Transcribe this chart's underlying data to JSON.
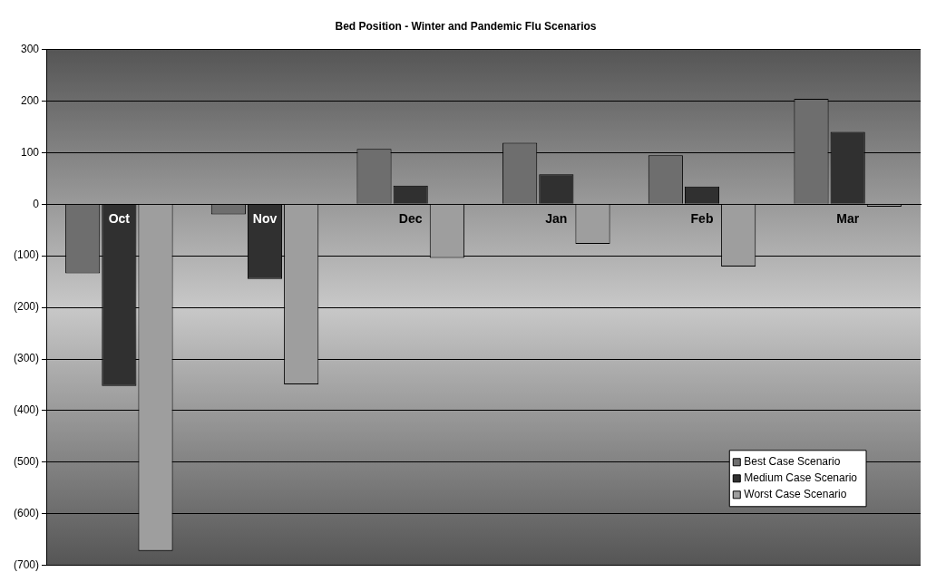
{
  "chart_data": {
    "type": "bar",
    "title": "Bed Position - Winter and Pandemic Flu Scenarios",
    "categories": [
      "Oct",
      "Nov",
      "Dec",
      "Jan",
      "Feb",
      "Mar"
    ],
    "series": [
      {
        "name": "Best Case Scenario",
        "color": "#6e6e6e",
        "values": [
          -134,
          -20,
          107,
          119,
          95,
          204
        ]
      },
      {
        "name": "Medium Case Scenario",
        "color": "#303030",
        "values": [
          -352,
          -145,
          36,
          58,
          34,
          140
        ]
      },
      {
        "name": "Worst Case Scenario",
        "color": "#9e9e9e",
        "values": [
          -672,
          -349,
          -104,
          -77,
          -121,
          -5
        ]
      }
    ],
    "ylim": [
      -700,
      300
    ],
    "yticks": [
      {
        "value": -700,
        "label": "(700)"
      },
      {
        "value": -600,
        "label": "(600)"
      },
      {
        "value": -500,
        "label": "(500)"
      },
      {
        "value": -400,
        "label": "(400)"
      },
      {
        "value": -300,
        "label": "(300)"
      },
      {
        "value": -200,
        "label": "(200)"
      },
      {
        "value": -100,
        "label": "(100)"
      },
      0,
      100,
      200,
      300
    ],
    "grid": "y",
    "legend": "bottom right"
  }
}
